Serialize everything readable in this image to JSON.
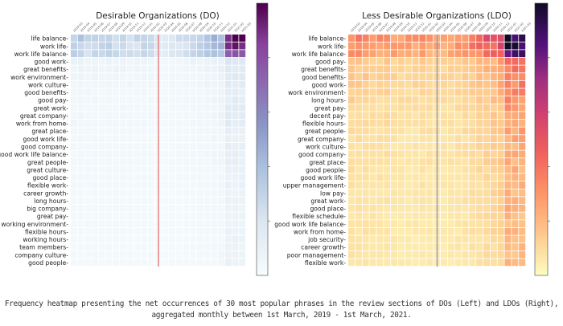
{
  "caption": {
    "line1": "Frequency heatmap presenting the net occurrences of 30 most popular phrases in the review sections of DOs (Left) and LDOs (Right),",
    "line2": "aggregated monthly between 1st March, 2019 - 1st March, 2021."
  },
  "chart_data": [
    {
      "type": "heatmap",
      "title": "Desirable Organizations (DO)",
      "colormap": "BuPu",
      "marker_line_color": "#e8615f",
      "marker_after_category_index": 12,
      "x_categories": [
        "2019-03",
        "2019-04",
        "2019-05",
        "2019-06",
        "2019-07",
        "2019-08",
        "2019-09",
        "2019-10",
        "2019-11",
        "2019-12",
        "2020-01",
        "2020-02",
        "2020-03",
        "2020-04",
        "2020-05",
        "2020-06",
        "2020-07",
        "2020-08",
        "2020-09",
        "2020-10",
        "2020-11",
        "2020-12",
        "2021-01",
        "2021-02",
        "2021-03"
      ],
      "y_categories": [
        "life balance",
        "work life",
        "work life balance",
        "good work",
        "great benefits",
        "work environment",
        "work culture",
        "good benefits",
        "good pay",
        "great work",
        "great company",
        "work from home",
        "great place",
        "good work life",
        "good company",
        "good work life balance",
        "great people",
        "great culture",
        "good place",
        "flexible work",
        "career growth",
        "long hours",
        "big company",
        "great pay",
        "working environment",
        "flexible hours",
        "working hours",
        "team members",
        "company culture",
        "good people"
      ],
      "row_levels": [
        0.34,
        0.3,
        0.29,
        0.08,
        0.07,
        0.06,
        0.06,
        0.05,
        0.05,
        0.05,
        0.05,
        0.05,
        0.04,
        0.04,
        0.04,
        0.04,
        0.04,
        0.035,
        0.035,
        0.035,
        0.03,
        0.03,
        0.03,
        0.03,
        0.03,
        0.03,
        0.03,
        0.03,
        0.03,
        0.03
      ],
      "column_profile": [
        0.95,
        0.95,
        0.9,
        0.9,
        0.85,
        0.9,
        0.85,
        0.85,
        0.8,
        0.8,
        0.85,
        0.8,
        0.5,
        0.55,
        0.6,
        0.65,
        0.75,
        0.85,
        0.95,
        1.1,
        1.2,
        1.3,
        2.8,
        2.7,
        2.6
      ],
      "value_scale": "relative (0-1 of colorbar max)",
      "colorbar": true
    },
    {
      "type": "heatmap",
      "title": "Less Desirable Organizations (LDO)",
      "colormap": "magma_r",
      "marker_line_color": "#9b97b8",
      "marker_after_category_index": 12,
      "x_categories": [
        "2019-03",
        "2019-04",
        "2019-05",
        "2019-06",
        "2019-07",
        "2019-08",
        "2019-09",
        "2019-10",
        "2019-11",
        "2019-12",
        "2020-01",
        "2020-02",
        "2020-03",
        "2020-04",
        "2020-05",
        "2020-06",
        "2020-07",
        "2020-08",
        "2020-09",
        "2020-10",
        "2020-11",
        "2020-12",
        "2021-01",
        "2021-02",
        "2021-03"
      ],
      "y_categories": [
        "life balance",
        "work life",
        "work life balance",
        "good pay",
        "great benefits",
        "good benefits",
        "good work",
        "work environment",
        "long hours",
        "great pay",
        "decent pay",
        "flexible hours",
        "great people",
        "great company",
        "work culture",
        "good company",
        "great place",
        "good people",
        "good work life",
        "upper management",
        "low pay",
        "great work",
        "good place",
        "flexible schedule",
        "good work life balance",
        "work from home",
        "job security",
        "career growth",
        "poor management",
        "flexible work"
      ],
      "row_levels": [
        0.36,
        0.33,
        0.31,
        0.16,
        0.15,
        0.15,
        0.14,
        0.13,
        0.12,
        0.11,
        0.1,
        0.1,
        0.1,
        0.09,
        0.09,
        0.09,
        0.09,
        0.085,
        0.085,
        0.08,
        0.08,
        0.08,
        0.08,
        0.075,
        0.075,
        0.075,
        0.07,
        0.07,
        0.07,
        0.07
      ],
      "column_profile": [
        1.0,
        0.95,
        0.95,
        0.9,
        0.85,
        0.9,
        0.8,
        0.75,
        0.75,
        0.8,
        0.85,
        0.8,
        0.7,
        0.75,
        0.8,
        0.85,
        0.95,
        1.05,
        1.15,
        1.3,
        1.4,
        1.6,
        2.7,
        2.5,
        2.6
      ],
      "value_scale": "relative (0-1 of colorbar max)",
      "colorbar": true
    }
  ]
}
